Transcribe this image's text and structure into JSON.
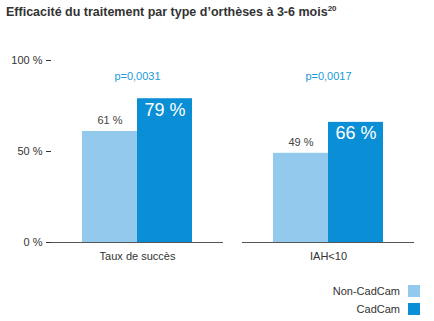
{
  "chart_data": {
    "type": "bar",
    "title": "Efficacité du traitement par type d’orthèses à 3-6 mois",
    "title_superscript": "20",
    "categories": [
      "Taux de succès",
      "IAH<10"
    ],
    "series": [
      {
        "name": "Non-CadCam",
        "color": "#93c9ec",
        "values": [
          61,
          49
        ],
        "value_labels": [
          "61 %",
          "49 %"
        ]
      },
      {
        "name": "CadCam",
        "color": "#0a8fd6",
        "values": [
          79,
          66
        ],
        "value_labels": [
          "79 %",
          "66 %"
        ]
      }
    ],
    "annotations": [
      {
        "category": "Taux de succès",
        "text": "p=0,0031"
      },
      {
        "category": "IAH<10",
        "text": "p=0,0017"
      }
    ],
    "ylim": [
      0,
      100
    ],
    "yticks": [
      {
        "value": 0,
        "label": "0 %"
      },
      {
        "value": 50,
        "label": "50 %"
      },
      {
        "value": 100,
        "label": "100 %"
      }
    ],
    "grid": false,
    "data_labels": true,
    "legend": "bottom-right"
  }
}
